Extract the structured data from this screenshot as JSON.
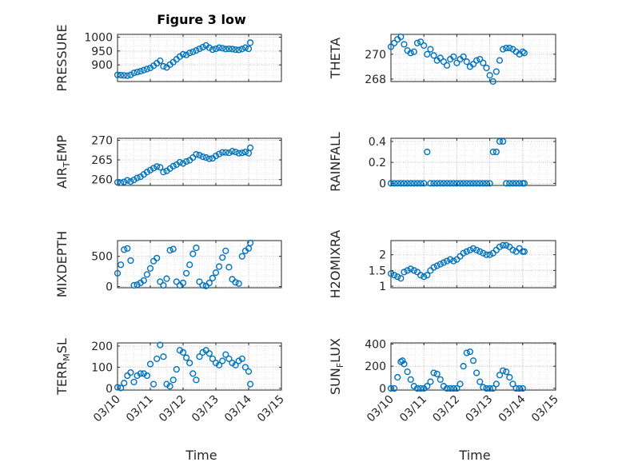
{
  "figure": {
    "title": "Figure 3 low",
    "xlabel_left": "Time",
    "xlabel_right": "Time",
    "marker_color": "#0072BD",
    "grid": "major and minor dotted",
    "x_tick_labels": [
      "03/10",
      "03/11",
      "03/12",
      "03/13",
      "03/14",
      "03/15"
    ]
  },
  "chart_data": [
    {
      "type": "scatter",
      "ylabel": "PRESSURE",
      "xlim": [
        0,
        5
      ],
      "ylim": [
        840,
        1010
      ],
      "yticks": [
        900,
        950,
        1000
      ],
      "x_tick_labels": [
        "03/10",
        "03/11",
        "03/12",
        "03/13",
        "03/14",
        "03/15"
      ],
      "x": [
        0.0,
        0.1,
        0.2,
        0.3,
        0.4,
        0.5,
        0.6,
        0.7,
        0.8,
        0.9,
        1.0,
        1.1,
        1.2,
        1.3,
        1.4,
        1.5,
        1.6,
        1.7,
        1.8,
        1.9,
        2.0,
        2.1,
        2.2,
        2.3,
        2.4,
        2.5,
        2.6,
        2.7,
        2.8,
        2.9,
        3.0,
        3.1,
        3.2,
        3.3,
        3.4,
        3.5,
        3.6,
        3.7,
        3.8,
        3.9,
        4.0,
        4.05
      ],
      "y": [
        864,
        863,
        862,
        861,
        864,
        871,
        874,
        877,
        881,
        885,
        889,
        897,
        906,
        915,
        895,
        891,
        901,
        910,
        920,
        930,
        938,
        936,
        943,
        947,
        952,
        958,
        964,
        970,
        962,
        955,
        958,
        962,
        960,
        957,
        958,
        957,
        955,
        954,
        957,
        962,
        958,
        980
      ]
    },
    {
      "type": "scatter",
      "ylabel": "THETA",
      "xlim": [
        0,
        5
      ],
      "ylim": [
        267.8,
        271.6
      ],
      "yticks": [
        268,
        270
      ],
      "x_tick_labels": [
        "03/10",
        "03/11",
        "03/12",
        "03/13",
        "03/14",
        "03/15"
      ],
      "x": [
        0.0,
        0.1,
        0.2,
        0.3,
        0.4,
        0.5,
        0.6,
        0.7,
        0.8,
        0.9,
        1.0,
        1.1,
        1.2,
        1.3,
        1.4,
        1.5,
        1.6,
        1.7,
        1.8,
        1.9,
        2.0,
        2.1,
        2.2,
        2.3,
        2.4,
        2.5,
        2.6,
        2.7,
        2.8,
        2.9,
        3.0,
        3.1,
        3.2,
        3.3,
        3.4,
        3.5,
        3.6,
        3.7,
        3.8,
        3.9,
        4.0,
        4.05
      ],
      "y": [
        270.6,
        270.9,
        271.2,
        271.4,
        270.8,
        270.3,
        270.1,
        270.2,
        270.9,
        271.0,
        270.7,
        270.0,
        270.4,
        269.9,
        269.5,
        269.7,
        269.4,
        269.1,
        269.6,
        269.8,
        269.3,
        269.6,
        269.8,
        269.4,
        269.0,
        269.2,
        269.5,
        269.6,
        269.3,
        268.9,
        268.3,
        267.8,
        268.6,
        269.5,
        270.4,
        270.5,
        270.5,
        270.4,
        270.2,
        270.0,
        270.2,
        270.1
      ]
    },
    {
      "type": "scatter",
      "ylabel": "AIR_TEMP",
      "xlim": [
        0,
        5
      ],
      "ylim": [
        258.5,
        270.5
      ],
      "yticks": [
        260,
        265,
        270
      ],
      "x_tick_labels": [
        "03/10",
        "03/11",
        "03/12",
        "03/13",
        "03/14",
        "03/15"
      ],
      "x": [
        0.0,
        0.1,
        0.2,
        0.3,
        0.4,
        0.5,
        0.6,
        0.7,
        0.8,
        0.9,
        1.0,
        1.1,
        1.2,
        1.3,
        1.4,
        1.5,
        1.6,
        1.7,
        1.8,
        1.9,
        2.0,
        2.1,
        2.2,
        2.3,
        2.4,
        2.5,
        2.6,
        2.7,
        2.8,
        2.9,
        3.0,
        3.1,
        3.2,
        3.3,
        3.4,
        3.5,
        3.6,
        3.7,
        3.8,
        3.9,
        4.0,
        4.05
      ],
      "y": [
        259.3,
        259.2,
        259.4,
        259.8,
        259.5,
        259.9,
        260.4,
        260.7,
        261.3,
        261.9,
        262.4,
        262.9,
        263.3,
        263.1,
        261.9,
        262.2,
        262.8,
        263.4,
        263.8,
        264.4,
        264.1,
        264.6,
        264.9,
        265.6,
        266.4,
        266.2,
        265.8,
        265.6,
        265.3,
        265.4,
        266.0,
        266.5,
        266.9,
        266.9,
        266.8,
        267.2,
        267.0,
        266.7,
        266.8,
        267.0,
        266.7,
        268.1
      ]
    },
    {
      "type": "scatter",
      "ylabel": "RAINFALL",
      "xlim": [
        0,
        5
      ],
      "ylim": [
        -0.02,
        0.43
      ],
      "yticks": [
        0,
        0.2,
        0.4
      ],
      "x_tick_labels": [
        "03/10",
        "03/11",
        "03/12",
        "03/13",
        "03/14",
        "03/15"
      ],
      "x": [
        0.0,
        0.1,
        0.2,
        0.3,
        0.4,
        0.5,
        0.6,
        0.7,
        0.8,
        0.9,
        1.0,
        1.1,
        1.2,
        1.3,
        1.4,
        1.5,
        1.6,
        1.7,
        1.8,
        1.9,
        2.0,
        2.1,
        2.2,
        2.3,
        2.4,
        2.5,
        2.6,
        2.7,
        2.8,
        2.9,
        3.0,
        3.1,
        3.2,
        3.3,
        3.4,
        3.5,
        3.6,
        3.7,
        3.8,
        3.9,
        4.0,
        4.05
      ],
      "y": [
        0,
        0,
        0,
        0,
        0,
        0,
        0,
        0,
        0,
        0,
        0,
        0.3,
        0,
        0,
        0,
        0,
        0,
        0,
        0,
        0,
        0,
        0,
        0,
        0,
        0,
        0,
        0,
        0,
        0,
        0,
        0,
        0.3,
        0.3,
        0.4,
        0.4,
        0,
        0,
        0,
        0,
        0,
        0,
        0
      ]
    },
    {
      "type": "scatter",
      "ylabel": "MIXDEPTH",
      "xlim": [
        0,
        5
      ],
      "ylim": [
        -20,
        760
      ],
      "yticks": [
        0,
        500
      ],
      "x_tick_labels": [
        "03/10",
        "03/11",
        "03/12",
        "03/13",
        "03/14",
        "03/15"
      ],
      "x": [
        0.0,
        0.1,
        0.2,
        0.3,
        0.4,
        0.5,
        0.6,
        0.7,
        0.8,
        0.9,
        1.0,
        1.1,
        1.2,
        1.3,
        1.4,
        1.5,
        1.6,
        1.7,
        1.8,
        1.9,
        2.0,
        2.1,
        2.2,
        2.3,
        2.4,
        2.5,
        2.6,
        2.7,
        2.8,
        2.9,
        3.0,
        3.1,
        3.2,
        3.3,
        3.4,
        3.5,
        3.6,
        3.7,
        3.8,
        3.9,
        4.0,
        4.05
      ],
      "y": [
        220,
        360,
        610,
        630,
        430,
        20,
        30,
        60,
        100,
        200,
        300,
        420,
        470,
        80,
        20,
        130,
        600,
        620,
        80,
        20,
        60,
        220,
        360,
        540,
        640,
        80,
        20,
        10,
        60,
        140,
        230,
        330,
        480,
        590,
        320,
        120,
        70,
        50,
        500,
        590,
        630,
        720
      ]
    },
    {
      "type": "scatter",
      "ylabel": "H2OMIXRA",
      "xlim": [
        0,
        5
      ],
      "ylim": [
        0.95,
        2.45
      ],
      "yticks": [
        1,
        1.5,
        2
      ],
      "x_tick_labels": [
        "03/10",
        "03/11",
        "03/12",
        "03/13",
        "03/14",
        "03/15"
      ],
      "x": [
        0.0,
        0.1,
        0.2,
        0.3,
        0.4,
        0.5,
        0.6,
        0.7,
        0.8,
        0.9,
        1.0,
        1.1,
        1.2,
        1.3,
        1.4,
        1.5,
        1.6,
        1.7,
        1.8,
        1.9,
        2.0,
        2.1,
        2.2,
        2.3,
        2.4,
        2.5,
        2.6,
        2.7,
        2.8,
        2.9,
        3.0,
        3.1,
        3.2,
        3.3,
        3.4,
        3.5,
        3.6,
        3.7,
        3.8,
        3.9,
        4.0,
        4.05
      ],
      "y": [
        1.4,
        1.35,
        1.3,
        1.25,
        1.45,
        1.5,
        1.55,
        1.5,
        1.45,
        1.35,
        1.3,
        1.35,
        1.5,
        1.6,
        1.65,
        1.7,
        1.75,
        1.8,
        1.85,
        1.8,
        1.85,
        1.95,
        2.05,
        2.1,
        2.15,
        2.2,
        2.15,
        2.1,
        2.05,
        2.0,
        2.0,
        2.05,
        2.15,
        2.25,
        2.3,
        2.3,
        2.25,
        2.15,
        2.1,
        2.2,
        2.1,
        2.1
      ]
    },
    {
      "type": "scatter",
      "ylabel": "TERR_MSL",
      "xlim": [
        0,
        5
      ],
      "ylim": [
        -8,
        215
      ],
      "yticks": [
        0,
        100,
        200
      ],
      "x_tick_labels": [
        "03/10",
        "03/11",
        "03/12",
        "03/13",
        "03/14",
        "03/15"
      ],
      "x": [
        0.0,
        0.1,
        0.2,
        0.3,
        0.4,
        0.5,
        0.6,
        0.7,
        0.8,
        0.9,
        1.0,
        1.1,
        1.2,
        1.3,
        1.4,
        1.5,
        1.6,
        1.7,
        1.8,
        1.9,
        2.0,
        2.1,
        2.2,
        2.3,
        2.4,
        2.5,
        2.6,
        2.7,
        2.8,
        2.9,
        3.0,
        3.1,
        3.2,
        3.3,
        3.4,
        3.5,
        3.6,
        3.7,
        3.8,
        3.9,
        4.0,
        4.05
      ],
      "y": [
        5,
        2,
        25,
        60,
        75,
        30,
        60,
        70,
        70,
        60,
        115,
        20,
        140,
        205,
        150,
        20,
        10,
        40,
        90,
        180,
        170,
        145,
        120,
        70,
        40,
        150,
        170,
        180,
        165,
        140,
        120,
        110,
        130,
        160,
        140,
        120,
        110,
        130,
        140,
        100,
        80,
        20
      ]
    },
    {
      "type": "scatter",
      "ylabel": "SUN_FLUX",
      "xlim": [
        0,
        5
      ],
      "ylim": [
        -15,
        410
      ],
      "yticks": [
        0,
        200,
        400
      ],
      "x_tick_labels": [
        "03/10",
        "03/11",
        "03/12",
        "03/13",
        "03/14",
        "03/15"
      ],
      "x": [
        0.0,
        0.1,
        0.2,
        0.3,
        0.35,
        0.4,
        0.5,
        0.6,
        0.7,
        0.8,
        0.9,
        1.0,
        1.1,
        1.2,
        1.3,
        1.4,
        1.5,
        1.6,
        1.7,
        1.8,
        1.9,
        2.0,
        2.1,
        2.2,
        2.3,
        2.4,
        2.5,
        2.6,
        2.7,
        2.8,
        2.9,
        3.0,
        3.1,
        3.2,
        3.3,
        3.4,
        3.5,
        3.6,
        3.7,
        3.8,
        3.9,
        4.0
      ],
      "y": [
        0,
        0,
        100,
        240,
        250,
        220,
        150,
        80,
        20,
        0,
        0,
        0,
        20,
        60,
        140,
        130,
        80,
        20,
        0,
        0,
        0,
        0,
        40,
        200,
        320,
        330,
        250,
        140,
        60,
        10,
        0,
        0,
        0,
        40,
        120,
        160,
        150,
        100,
        40,
        0,
        0,
        0
      ]
    }
  ]
}
